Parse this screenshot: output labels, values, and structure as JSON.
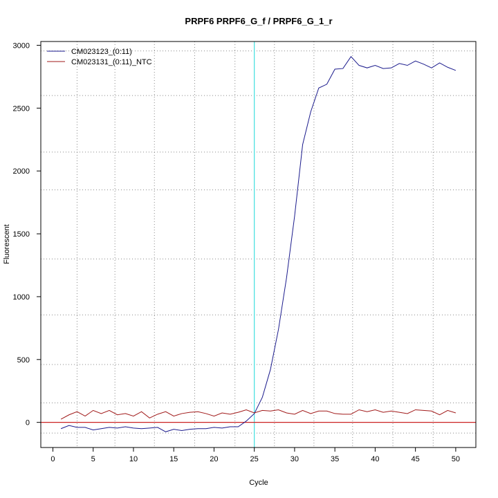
{
  "chart_data": {
    "type": "line",
    "title": "PRPF6  PRPF6_G_f / PRPF6_G_1_r",
    "xlabel": "Cycle",
    "ylabel": "Fluorescent",
    "xlim": [
      -1.5,
      52.5
    ],
    "ylim": [
      -200,
      3030
    ],
    "x_ticks": [
      0,
      5,
      10,
      15,
      20,
      25,
      30,
      35,
      40,
      45,
      50
    ],
    "y_ticks": [
      0,
      500,
      1000,
      1500,
      2000,
      2500,
      3000
    ],
    "grid": true,
    "grid_style": "dotted",
    "x_grid": [
      3,
      7.7,
      12.6,
      17.6,
      22.6,
      27.5,
      32.4,
      37.2,
      42.2,
      47.2
    ],
    "y_grid": [
      -85,
      155,
      460,
      855,
      1300,
      1850,
      2150,
      2600,
      2955
    ],
    "threshold_x": 25,
    "threshold_color": "#40e0e0",
    "baseline_y": 0,
    "baseline_color": "#cc2222",
    "legend_position": "top-left",
    "x": [
      1,
      2,
      3,
      4,
      5,
      6,
      7,
      8,
      9,
      10,
      11,
      12,
      13,
      14,
      15,
      16,
      17,
      18,
      19,
      20,
      21,
      22,
      23,
      24,
      25,
      26,
      27,
      28,
      29,
      30,
      31,
      32,
      33,
      34,
      35,
      36,
      37,
      38,
      39,
      40,
      41,
      42,
      43,
      44,
      45,
      46,
      47,
      48,
      49,
      50
    ],
    "series": [
      {
        "name": "CM023123_(0:11)",
        "color": "#1a1a8c",
        "values": [
          -50,
          -25,
          -40,
          -40,
          -60,
          -50,
          -40,
          -45,
          -35,
          -45,
          -50,
          -45,
          -40,
          -75,
          -55,
          -65,
          -55,
          -50,
          -50,
          -40,
          -45,
          -35,
          -35,
          10,
          70,
          200,
          420,
          740,
          1150,
          1640,
          2210,
          2470,
          2660,
          2690,
          2810,
          2815,
          2910,
          2840,
          2820,
          2840,
          2815,
          2820,
          2855,
          2840,
          2875,
          2850,
          2820,
          2860,
          2825,
          2800
        ]
      },
      {
        "name": "CM023131_(0:11)_NTC",
        "color": "#a01818",
        "values": [
          25,
          60,
          85,
          50,
          95,
          70,
          95,
          60,
          70,
          50,
          85,
          35,
          65,
          85,
          50,
          70,
          80,
          85,
          70,
          50,
          75,
          65,
          80,
          100,
          75,
          95,
          90,
          100,
          75,
          65,
          95,
          70,
          90,
          90,
          70,
          65,
          65,
          100,
          85,
          100,
          80,
          90,
          80,
          70,
          100,
          95,
          90,
          60,
          95,
          75
        ]
      }
    ]
  }
}
